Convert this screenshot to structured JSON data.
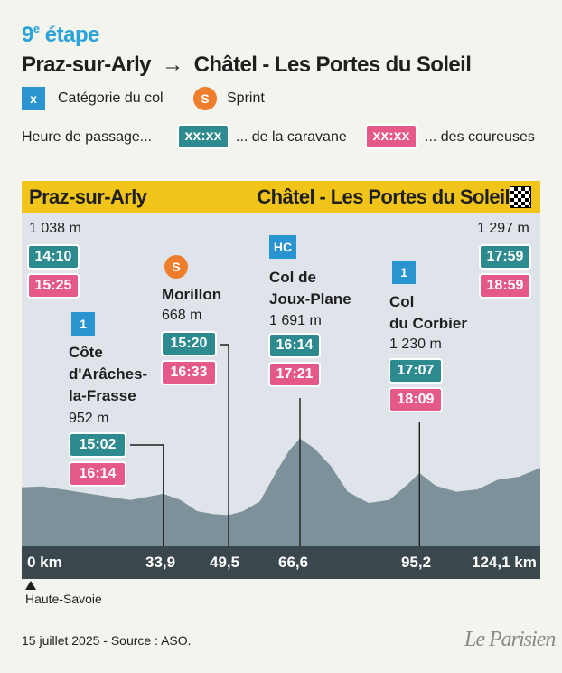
{
  "header": {
    "stage_num": "9",
    "stage_sup": "e",
    "stage_word": "étape",
    "route_start": "Praz-sur-Arly",
    "arrow": "→",
    "route_end": "Châtel - Les Portes du Soleil"
  },
  "legend": {
    "cat_box": "x",
    "cat_label": "Catégorie du col",
    "sprint_box": "S",
    "sprint_label": "Sprint",
    "passage_label": "Heure de passage...",
    "caravan_box": "xx:xx",
    "caravan_label": "... de la caravane",
    "riders_box": "xx:xx",
    "riders_label": "... des coureuses"
  },
  "colors": {
    "caravan": "#2d8a8e",
    "riders": "#e4598a",
    "category": "#2a94d0",
    "sprint": "#ee7d2c",
    "header_bar": "#f0c419",
    "profile": "#7d919a",
    "panel": "#dfe4ea"
  },
  "chart_data": {
    "type": "area",
    "start": "Praz-sur-Arly",
    "finish": "Châtel - Les Portes du Soleil",
    "x_unit": "km",
    "xlim": [
      0,
      124.1
    ],
    "x_ticks": [
      "0 km",
      "33,9",
      "49,5",
      "66,6",
      "95,2",
      "124,1 km"
    ],
    "profile": [
      {
        "km": 0,
        "alt": 1038
      },
      {
        "km": 5,
        "alt": 1050
      },
      {
        "km": 12,
        "alt": 990
      },
      {
        "km": 20,
        "alt": 920
      },
      {
        "km": 26,
        "alt": 870
      },
      {
        "km": 30,
        "alt": 910
      },
      {
        "km": 33.9,
        "alt": 952
      },
      {
        "km": 38,
        "alt": 870
      },
      {
        "km": 42,
        "alt": 720
      },
      {
        "km": 46,
        "alt": 680
      },
      {
        "km": 49.5,
        "alt": 668
      },
      {
        "km": 53,
        "alt": 720
      },
      {
        "km": 57,
        "alt": 850
      },
      {
        "km": 61,
        "alt": 1250
      },
      {
        "km": 64,
        "alt": 1530
      },
      {
        "km": 66.6,
        "alt": 1691
      },
      {
        "km": 70,
        "alt": 1560
      },
      {
        "km": 74,
        "alt": 1320
      },
      {
        "km": 78,
        "alt": 980
      },
      {
        "km": 83,
        "alt": 830
      },
      {
        "km": 88,
        "alt": 870
      },
      {
        "km": 92,
        "alt": 1060
      },
      {
        "km": 95.2,
        "alt": 1230
      },
      {
        "km": 99,
        "alt": 1060
      },
      {
        "km": 104,
        "alt": 980
      },
      {
        "km": 109,
        "alt": 1010
      },
      {
        "km": 114,
        "alt": 1140
      },
      {
        "km": 119,
        "alt": 1180
      },
      {
        "km": 124.1,
        "alt": 1297
      }
    ],
    "points": [
      {
        "key": "start",
        "km": 0,
        "alt": 1038,
        "alt_label": "1 038 m",
        "caravan": "14:10",
        "riders": "15:25"
      },
      {
        "key": "aracches",
        "km": 33.9,
        "alt": 952,
        "cat": "1",
        "name": [
          "Côte",
          "d'Arâches-",
          "la-Frasse"
        ],
        "alt_label": "952 m",
        "caravan": "15:02",
        "riders": "16:14"
      },
      {
        "key": "morillon",
        "km": 49.5,
        "alt": 668,
        "sprint": "S",
        "name": [
          "Morillon"
        ],
        "alt_label": "668 m",
        "caravan": "15:20",
        "riders": "16:33"
      },
      {
        "key": "jouxplane",
        "km": 66.6,
        "alt": 1691,
        "cat": "HC",
        "name": [
          "Col de",
          "Joux-Plane"
        ],
        "alt_label": "1 691 m",
        "caravan": "16:14",
        "riders": "17:21"
      },
      {
        "key": "corbier",
        "km": 95.2,
        "alt": 1230,
        "cat": "1",
        "name": [
          "Col",
          "du Corbier"
        ],
        "alt_label": "1 230 m",
        "caravan": "17:07",
        "riders": "18:09"
      },
      {
        "key": "finish",
        "km": 124.1,
        "alt": 1297,
        "alt_label": "1 297 m",
        "caravan": "17:59",
        "riders": "18:59"
      }
    ]
  },
  "region": "Haute-Savoie",
  "footer": {
    "source": "15 juillet 2025 - Source : ASO.",
    "logo": "Le Parisien"
  }
}
